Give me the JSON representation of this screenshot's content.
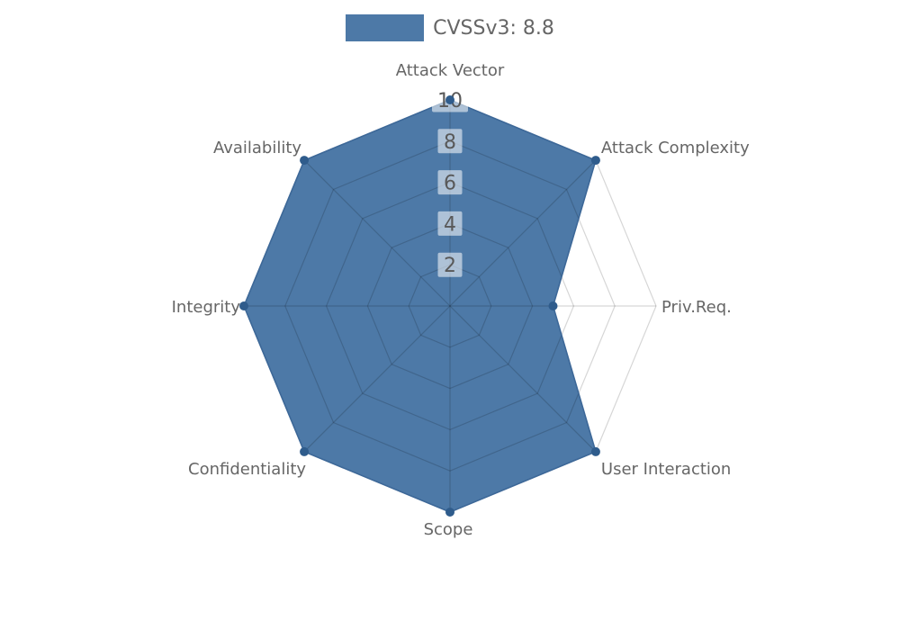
{
  "legend": {
    "label": "CVSSv3: 8.8",
    "swatch_color": "#4d79a7"
  },
  "chart_data": {
    "type": "radar",
    "title": "",
    "categories": [
      "Attack Vector",
      "Attack Complexity",
      "Priv.Req.",
      "User Interaction",
      "Scope",
      "Confidentiality",
      "Integrity",
      "Availability"
    ],
    "series": [
      {
        "name": "CVSSv3: 8.8",
        "values": [
          10,
          10,
          5,
          10,
          10,
          10,
          10,
          10
        ],
        "fill_color": "#4d79a7",
        "stroke_color": "#3d6898",
        "marker_color": "#2f5c8c"
      }
    ],
    "ticks": [
      2,
      4,
      6,
      8,
      10
    ],
    "tick_labels": [
      "2",
      "4",
      "6",
      "8",
      "10"
    ],
    "rlim": [
      0,
      10
    ],
    "grid": true,
    "legend_position": "top",
    "grid_color": "rgba(0,0,0,0.16)",
    "tick_text_color": "#595959",
    "tick_box_color": "rgba(255,255,255,0.55)",
    "label_color": "#666666"
  }
}
